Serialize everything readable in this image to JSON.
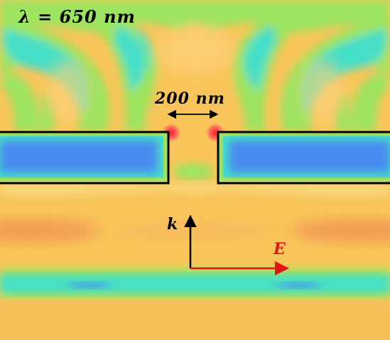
{
  "annotations": {
    "wavelength": "λ = 650 nm",
    "gap_width": "200 nm",
    "wave_vector": "k",
    "electric_field": "E"
  },
  "colors": {
    "background_field": "#f9c55a",
    "field_min": "#4a8cf0",
    "field_low": "#3fe3c8",
    "field_mid": "#9ce45e",
    "field_high": "#f39a50",
    "field_max": "#ff3030",
    "outline": "#000000",
    "wave_vector_arrow": "#000000",
    "electric_field_arrow": "#e01515"
  }
}
